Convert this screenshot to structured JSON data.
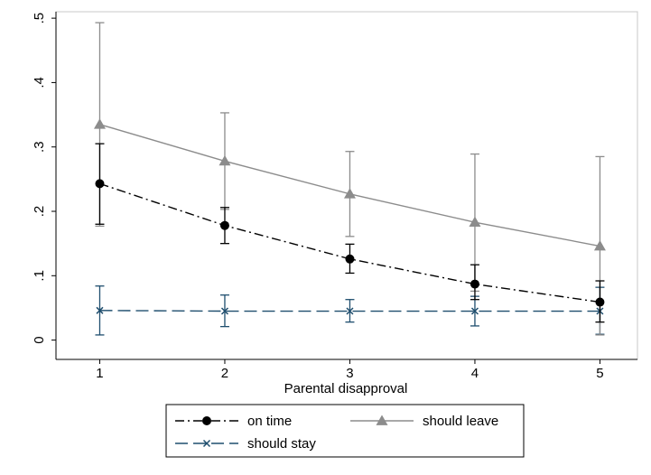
{
  "chart_data": {
    "type": "line",
    "title": "",
    "xlabel": "Parental disapproval",
    "ylabel": "",
    "x": [
      1,
      2,
      3,
      4,
      5
    ],
    "xlim": [
      0.65,
      5.3
    ],
    "ylim": [
      -0.03,
      0.51
    ],
    "xticks": [
      "1",
      "2",
      "3",
      "4",
      "5"
    ],
    "yticks": [
      "0",
      ".1",
      ".2",
      ".3",
      ".4",
      ".5"
    ],
    "ytick_values": [
      0,
      0.1,
      0.2,
      0.3,
      0.4,
      0.5
    ],
    "grid": false,
    "legend_position": "bottom",
    "series": [
      {
        "name": "on time",
        "color": "#000000",
        "marker": "circle",
        "line_style": "dash-dot",
        "values": [
          0.243,
          0.178,
          0.126,
          0.087,
          0.059
        ],
        "ci_low": [
          0.18,
          0.15,
          0.104,
          0.063,
          0.028
        ],
        "ci_high": [
          0.305,
          0.206,
          0.149,
          0.117,
          0.092
        ]
      },
      {
        "name": "should leave",
        "color": "#8c8c8c",
        "marker": "triangle",
        "line_style": "solid",
        "values": [
          0.335,
          0.278,
          0.227,
          0.183,
          0.146
        ],
        "ci_low": [
          0.177,
          0.203,
          0.161,
          0.076,
          0.008
        ],
        "ci_high": [
          0.493,
          0.353,
          0.293,
          0.289,
          0.285
        ]
      },
      {
        "name": "should stay",
        "color": "#1f4e6e",
        "marker": "x",
        "line_style": "long-dash",
        "values": [
          0.046,
          0.045,
          0.045,
          0.045,
          0.045
        ],
        "ci_low": [
          0.008,
          0.021,
          0.028,
          0.022,
          0.009
        ],
        "ci_high": [
          0.084,
          0.07,
          0.063,
          0.068,
          0.082
        ]
      }
    ]
  }
}
